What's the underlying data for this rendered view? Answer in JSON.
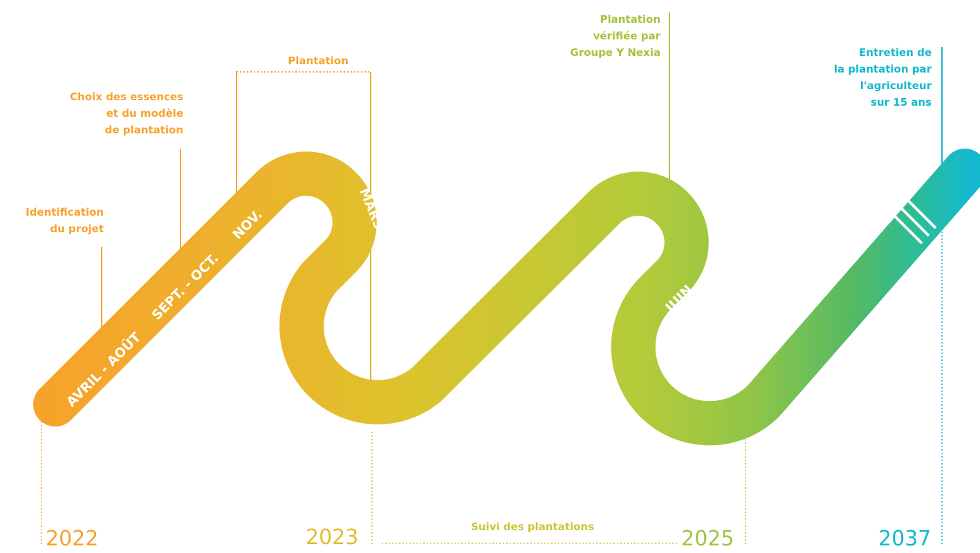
{
  "colors": {
    "orange": "#f7a22c",
    "gold": "#e2bf2d",
    "lime": "#a9c83d",
    "green": "#57b95e",
    "teal": "#14b9cd",
    "path_text": "#ffffff"
  },
  "labels": {
    "identification": [
      "Identification",
      "du projet"
    ],
    "choix": [
      "Choix des essences",
      "et du modèle",
      "de plantation"
    ],
    "plantation": [
      "Plantation"
    ],
    "verifiee": [
      "Plantation",
      "vérifiée par",
      "Groupe Y Nexia"
    ],
    "entretien": [
      "Entretien de",
      "la plantation par",
      "l'agriculteur",
      "sur 15 ans"
    ],
    "suivi": "Suivi des plantations"
  },
  "path_labels": {
    "avril_aout": "AVRIL - AOÛT",
    "sept_oct": "SEPT. - OCT.",
    "nov": "NOV.",
    "mars": "MARS",
    "juin": "JUIN"
  },
  "years": {
    "y2022": "2022",
    "y2023": "2023",
    "y2025": "2025",
    "y2037": "2037"
  }
}
